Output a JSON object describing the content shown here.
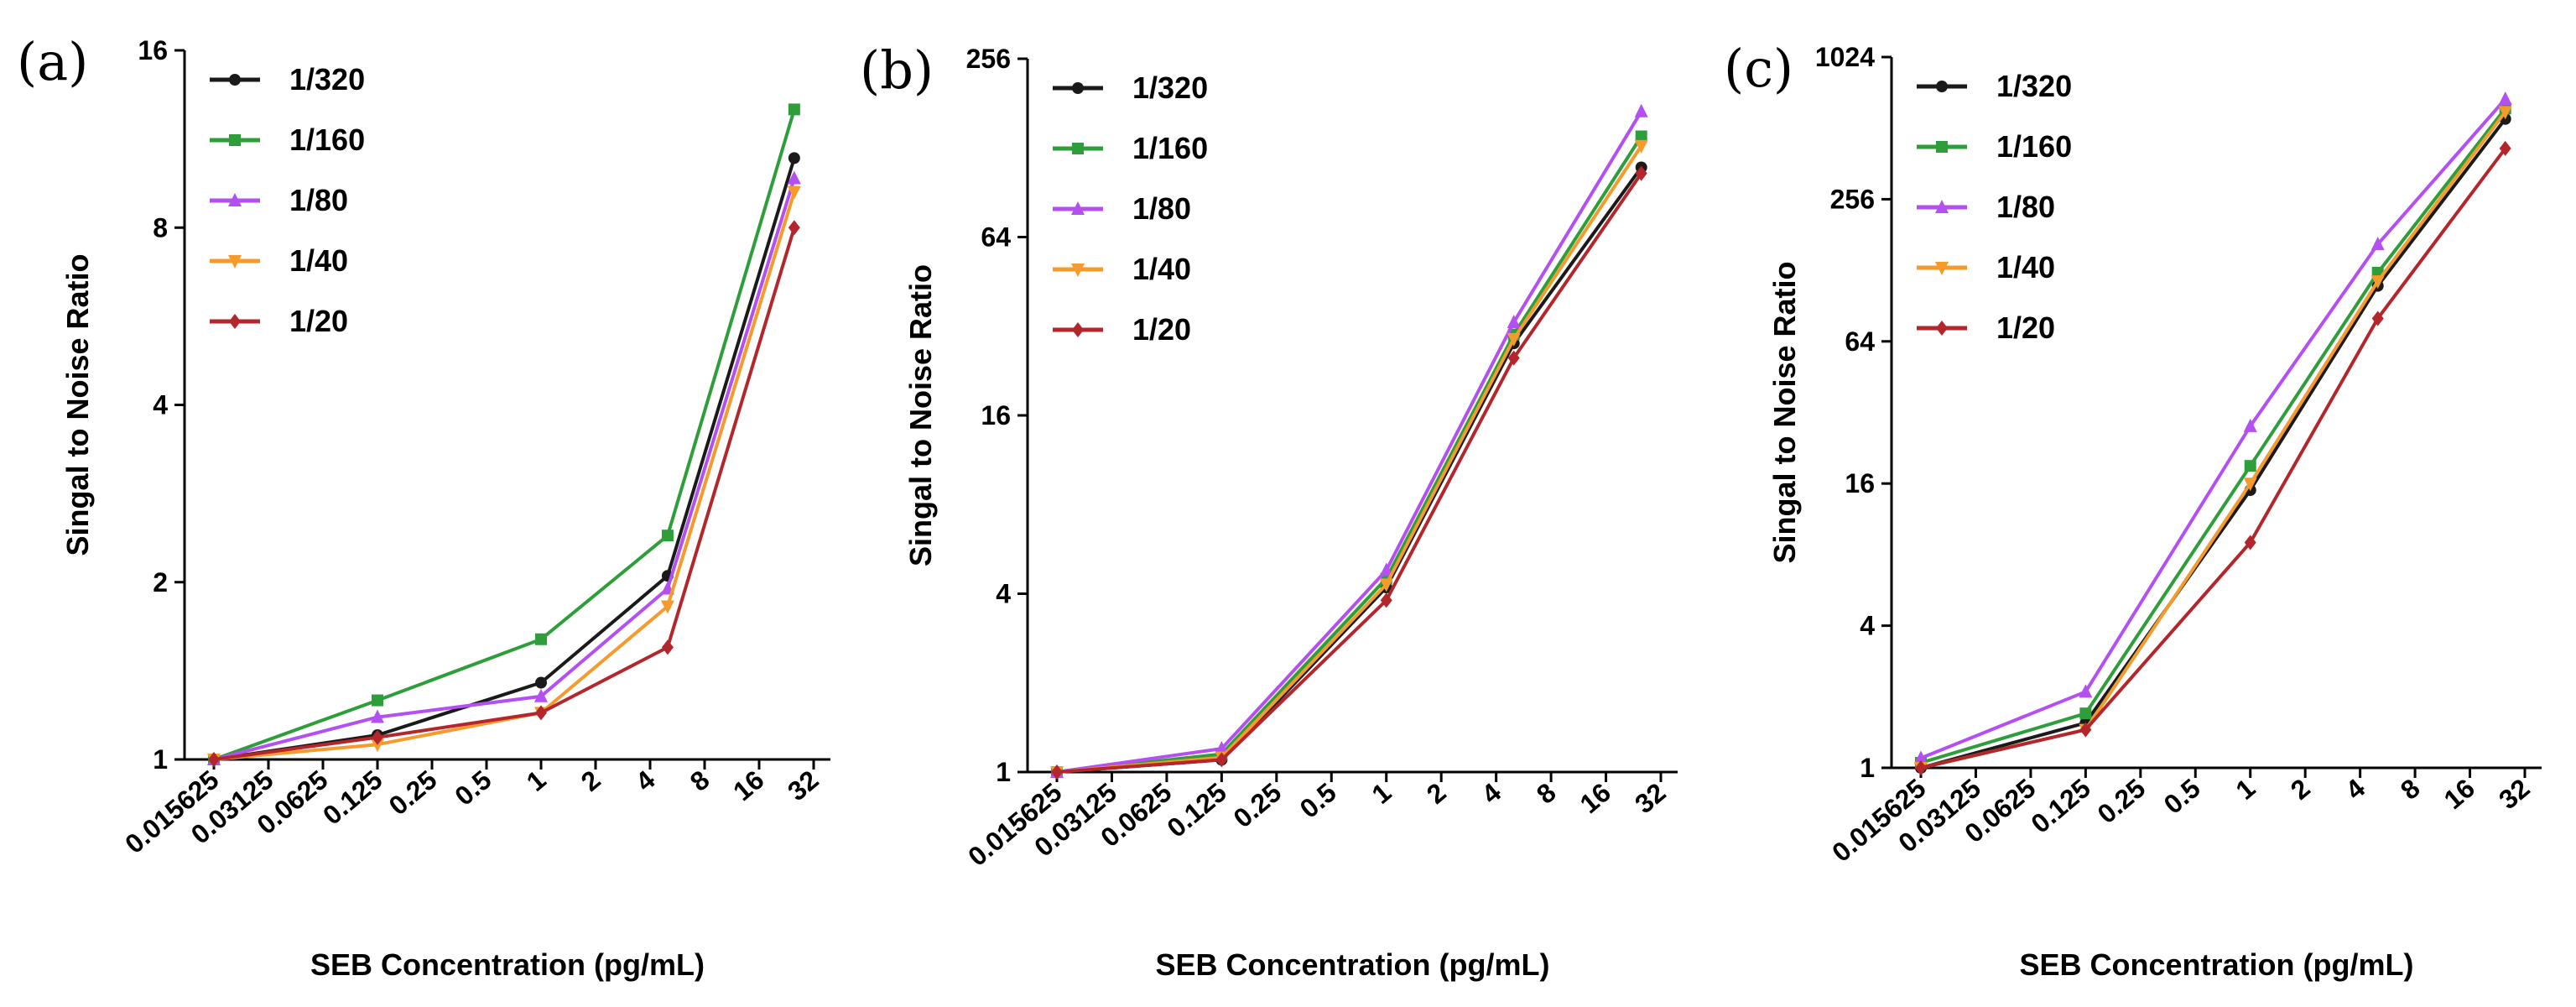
{
  "series_colors": [
    "#1a1a1a",
    "#2e9e3a",
    "#b44ff2",
    "#f59a2c",
    "#b3262c"
  ],
  "chart_data": [
    {
      "type": "line",
      "panel_label": "(a)",
      "x_ticks": [
        "0.015625",
        "0.03125",
        "0.0625",
        "0.125",
        "0.25",
        "0.5",
        "1",
        "2",
        "4",
        "8",
        "16",
        "32"
      ],
      "y_scale": "log2",
      "ylim": [
        1,
        16
      ],
      "y_ticks": [
        "1",
        "2",
        "4",
        "8",
        "16"
      ],
      "xlabel": "SEB Concentration (pg/mL)",
      "ylabel": "Singal to Noise Ratio",
      "legend": "top-left",
      "x": [
        0.015625,
        0.125,
        1,
        5,
        25
      ],
      "series": [
        {
          "name": "1/320",
          "values": [
            1.0,
            1.1,
            1.35,
            2.05,
            10.5
          ]
        },
        {
          "name": "1/160",
          "values": [
            1.0,
            1.26,
            1.6,
            2.4,
            12.7
          ]
        },
        {
          "name": "1/80",
          "values": [
            1.0,
            1.18,
            1.28,
            1.95,
            9.7
          ]
        },
        {
          "name": "1/40",
          "values": [
            1.0,
            1.06,
            1.2,
            1.82,
            9.2
          ]
        },
        {
          "name": "1/20",
          "values": [
            1.0,
            1.09,
            1.2,
            1.55,
            8.0
          ]
        }
      ]
    },
    {
      "type": "line",
      "panel_label": "(b)",
      "x_ticks": [
        "0.015625",
        "0.03125",
        "0.0625",
        "0.125",
        "0.25",
        "0.5",
        "1",
        "2",
        "4",
        "8",
        "16",
        "32"
      ],
      "y_scale": "log2",
      "ylim": [
        1,
        256
      ],
      "y_ticks": [
        "1",
        "4",
        "16",
        "64",
        "256"
      ],
      "xlabel": "SEB Concentration (pg/mL)",
      "ylabel": "Singal to Noise Ratio",
      "legend": "top-left",
      "x": [
        0.015625,
        0.125,
        1,
        5,
        25
      ],
      "series": [
        {
          "name": "1/320",
          "values": [
            1.0,
            1.1,
            4.2,
            28,
            110
          ]
        },
        {
          "name": "1/160",
          "values": [
            1.0,
            1.15,
            4.5,
            30,
            140
          ]
        },
        {
          "name": "1/80",
          "values": [
            1.0,
            1.2,
            4.8,
            33,
            170
          ]
        },
        {
          "name": "1/40",
          "values": [
            1.0,
            1.12,
            4.3,
            29,
            130
          ]
        },
        {
          "name": "1/20",
          "values": [
            1.0,
            1.1,
            3.8,
            25,
            105
          ]
        }
      ]
    },
    {
      "type": "line",
      "panel_label": "(c)",
      "x_ticks": [
        "0.015625",
        "0.03125",
        "0.0625",
        "0.125",
        "0.25",
        "0.5",
        "1",
        "2",
        "4",
        "8",
        "16",
        "32"
      ],
      "y_scale": "log2",
      "ylim": [
        1,
        1024
      ],
      "y_ticks": [
        "1",
        "4",
        "16",
        "64",
        "256",
        "1024"
      ],
      "xlabel": "SEB Concentration (pg/mL)",
      "ylabel": "Singal to Noise Ratio",
      "legend": "top-left",
      "x": [
        0.015625,
        0.125,
        1,
        5,
        25
      ],
      "series": [
        {
          "name": "1/320",
          "values": [
            1.0,
            1.55,
            15,
            110,
            560
          ]
        },
        {
          "name": "1/160",
          "values": [
            1.05,
            1.7,
            19,
            125,
            620
          ]
        },
        {
          "name": "1/80",
          "values": [
            1.1,
            2.1,
            28,
            165,
            680
          ]
        },
        {
          "name": "1/40",
          "values": [
            1.0,
            1.45,
            16,
            115,
            600
          ]
        },
        {
          "name": "1/20",
          "values": [
            1.0,
            1.45,
            9,
            80,
            420
          ]
        }
      ]
    }
  ]
}
